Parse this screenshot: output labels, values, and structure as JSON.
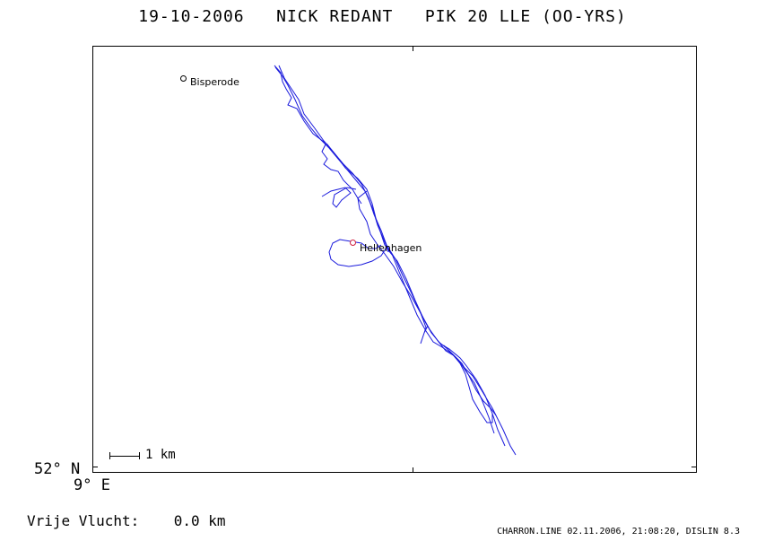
{
  "header": {
    "title": "19-10-2006   NICK REDANT   PIK 20 LLE (OO-YRS)"
  },
  "map": {
    "places": [
      {
        "name": "Bisperode",
        "marker_color": "#000000"
      },
      {
        "name": "Hellenhagen",
        "marker_color": "#d02040"
      }
    ],
    "track_color": "#1a1adc",
    "scale_label": "1 km",
    "lat_label": "52° N",
    "lon_label": "9° E"
  },
  "footer": {
    "distance_label": "Vrije Vlucht:",
    "distance_value": "0.0 km",
    "credit": "CHARRON.LINE 02.11.2006, 21:08:20, DISLIN 8.3"
  }
}
